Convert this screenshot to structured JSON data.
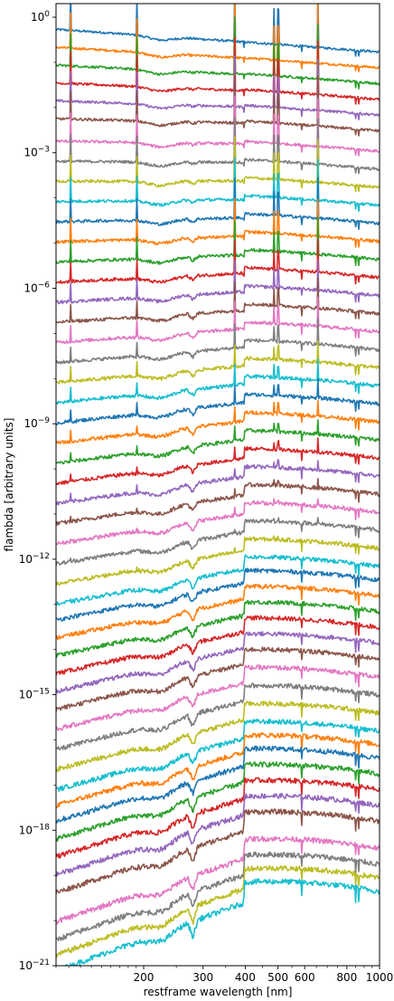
{
  "chart_data": {
    "type": "line",
    "title": "",
    "xlabel": "restframe wavelength [nm]",
    "ylabel": "flambda [arbitrary units]",
    "xscale": "log",
    "yscale": "log",
    "xlim": [
      110,
      1000
    ],
    "ylim": [
      1e-21,
      2
    ],
    "grid": false,
    "legend": "none",
    "x_ticks": [
      {
        "value": 200,
        "label": "200"
      },
      {
        "value": 300,
        "label": "300"
      },
      {
        "value": 400,
        "label": "400"
      },
      {
        "value": 500,
        "label": "500"
      },
      {
        "value": 600,
        "label": "600"
      },
      {
        "value": 800,
        "label": "800"
      },
      {
        "value": 1000,
        "label": "1000"
      }
    ],
    "y_ticks": [
      {
        "exp": 0,
        "mantissa": "10",
        "power": "0"
      },
      {
        "exp": -3,
        "mantissa": "10",
        "power": "−3"
      },
      {
        "exp": -6,
        "mantissa": "10",
        "power": "−6"
      },
      {
        "exp": -9,
        "mantissa": "10",
        "power": "−9"
      },
      {
        "exp": -12,
        "mantissa": "10",
        "power": "−12"
      },
      {
        "exp": -15,
        "mantissa": "10",
        "power": "−15"
      },
      {
        "exp": -18,
        "mantissa": "10",
        "power": "−18"
      },
      {
        "exp": -21,
        "mantissa": "10",
        "power": "−21"
      }
    ],
    "palette": [
      "#1f77b4",
      "#ff7f0e",
      "#2ca02c",
      "#d62728",
      "#9467bd",
      "#8c564b",
      "#e377c2",
      "#7f7f7f",
      "#bcbd22",
      "#17becf"
    ],
    "series": [
      {
        "color": "#1f77b4",
        "log_level_400nm": -0.55,
        "ages_young": true
      },
      {
        "color": "#ff7f0e",
        "log_level_400nm": -0.9
      },
      {
        "color": "#2ca02c",
        "log_level_400nm": -1.25
      },
      {
        "color": "#d62728",
        "log_level_400nm": -1.6
      },
      {
        "color": "#9467bd",
        "log_level_400nm": -1.95
      },
      {
        "color": "#8c564b",
        "log_level_400nm": -2.3
      },
      {
        "color": "#e377c2",
        "log_level_400nm": -2.75
      },
      {
        "color": "#7f7f7f",
        "log_level_400nm": -3.15
      },
      {
        "color": "#bcbd22",
        "log_level_400nm": -3.55
      },
      {
        "color": "#17becf",
        "log_level_400nm": -3.95
      },
      {
        "color": "#1f77b4",
        "log_level_400nm": -4.35
      },
      {
        "color": "#ff7f0e",
        "log_level_400nm": -4.75
      },
      {
        "color": "#2ca02c",
        "log_level_400nm": -5.15
      },
      {
        "color": "#d62728",
        "log_level_400nm": -5.55
      },
      {
        "color": "#9467bd",
        "log_level_400nm": -5.95
      },
      {
        "color": "#8c564b",
        "log_level_400nm": -6.35
      },
      {
        "color": "#e377c2",
        "log_level_400nm": -6.75
      },
      {
        "color": "#7f7f7f",
        "log_level_400nm": -7.15
      },
      {
        "color": "#bcbd22",
        "log_level_400nm": -7.55
      },
      {
        "color": "#17becf",
        "log_level_400nm": -7.95
      },
      {
        "color": "#1f77b4",
        "log_level_400nm": -8.35
      },
      {
        "color": "#ff7f0e",
        "log_level_400nm": -8.75
      },
      {
        "color": "#2ca02c",
        "log_level_400nm": -9.15
      },
      {
        "color": "#d62728",
        "log_level_400nm": -9.55
      },
      {
        "color": "#9467bd",
        "log_level_400nm": -9.95
      },
      {
        "color": "#8c564b",
        "log_level_400nm": -10.35
      },
      {
        "color": "#e377c2",
        "log_level_400nm": -10.75
      },
      {
        "color": "#7f7f7f",
        "log_level_400nm": -11.15
      },
      {
        "color": "#bcbd22",
        "log_level_400nm": -11.55
      },
      {
        "color": "#17becf",
        "log_level_400nm": -11.95
      },
      {
        "color": "#1f77b4",
        "log_level_400nm": -12.25
      },
      {
        "color": "#ff7f0e",
        "log_level_400nm": -12.6
      },
      {
        "color": "#2ca02c",
        "log_level_400nm": -12.95
      },
      {
        "color": "#d62728",
        "log_level_400nm": -13.3
      },
      {
        "color": "#9467bd",
        "log_level_400nm": -13.65
      },
      {
        "color": "#8c564b",
        "log_level_400nm": -14.0
      },
      {
        "color": "#e377c2",
        "log_level_400nm": -14.4
      },
      {
        "color": "#7f7f7f",
        "log_level_400nm": -14.8
      },
      {
        "color": "#bcbd22",
        "log_level_400nm": -15.2
      },
      {
        "color": "#17becf",
        "log_level_400nm": -15.6
      },
      {
        "color": "#ff7f0e",
        "log_level_400nm": -15.9
      },
      {
        "color": "#1f77b4",
        "log_level_400nm": -16.2
      },
      {
        "color": "#2ca02c",
        "log_level_400nm": -16.55
      },
      {
        "color": "#d62728",
        "log_level_400nm": -16.9
      },
      {
        "color": "#9467bd",
        "log_level_400nm": -17.25
      },
      {
        "color": "#8c564b",
        "log_level_400nm": -17.6
      },
      {
        "color": "#e377c2",
        "log_level_400nm": -18.2
      },
      {
        "color": "#7f7f7f",
        "log_level_400nm": -18.55
      },
      {
        "color": "#bcbd22",
        "log_level_400nm": -18.85
      },
      {
        "color": "#17becf",
        "log_level_400nm": -19.15
      }
    ]
  }
}
